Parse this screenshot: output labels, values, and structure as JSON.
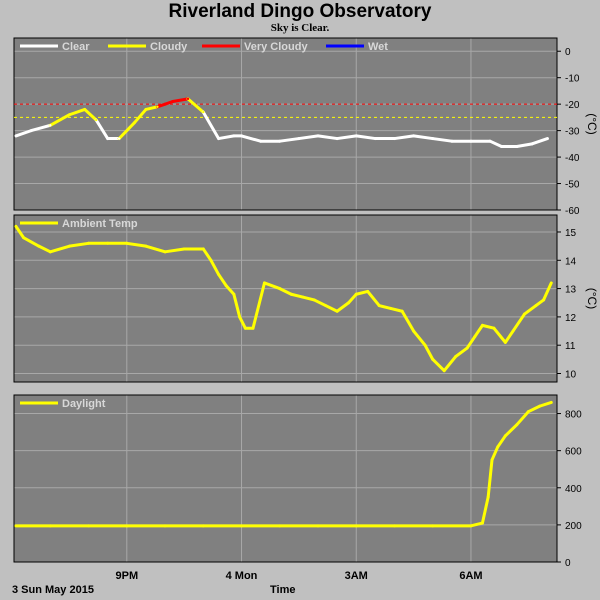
{
  "title": "Riverland Dingo Observatory",
  "subtitle": "Sky is Clear.",
  "footer": {
    "date": "3 Sun May 2015",
    "x_axis_label": "Time"
  },
  "colors": {
    "panel": "#808080",
    "grid": "#a8a8a8",
    "clear": "#ffffff",
    "cloudy": "#ffff00",
    "very_cloudy": "#ff0000",
    "wet": "#0000ff",
    "threshold_cloudy": "#ffff00",
    "threshold_very_cloudy": "#ff0000"
  },
  "x_ticks": [
    {
      "label": "9PM",
      "t": 3
    },
    {
      "label": "4 Mon",
      "t": 6
    },
    {
      "label": "3AM",
      "t": 9
    },
    {
      "label": "6AM",
      "t": 12
    }
  ],
  "chart_data": [
    {
      "type": "line",
      "name": "sky",
      "legend": [
        "Clear",
        "Cloudy",
        "Very Cloudy",
        "Wet"
      ],
      "ylabel": "(°C)",
      "ylim": [
        -60,
        5
      ],
      "yticks": [
        0,
        -10,
        -20,
        -30,
        -40,
        -50,
        -60
      ],
      "thresholds": [
        {
          "value": -20,
          "color": "red"
        },
        {
          "value": -25,
          "color": "yellow"
        }
      ],
      "xlim": [
        0.05,
        14.25
      ],
      "x": [
        0.1,
        0.5,
        1.0,
        1.5,
        1.9,
        2.2,
        2.5,
        2.8,
        3.2,
        3.5,
        3.8,
        4.0,
        4.2,
        4.6,
        5.0,
        5.4,
        5.8,
        6.0,
        6.5,
        7.0,
        7.5,
        8.0,
        8.5,
        9.0,
        9.5,
        10.0,
        10.5,
        11.0,
        11.5,
        12.0,
        12.5,
        12.8,
        13.2,
        13.6,
        14.0
      ],
      "y": [
        -32,
        -30,
        -28,
        -24,
        -22,
        -26,
        -33,
        -33,
        -27,
        -22,
        -21,
        -20,
        -19,
        -18,
        -23,
        -33,
        -32,
        -32,
        -34,
        -34,
        -33,
        -32,
        -33,
        -32,
        -33,
        -33,
        -32,
        -33,
        -34,
        -34,
        -34,
        -36,
        -36,
        -35,
        -33
      ],
      "state": [
        "clear",
        "clear",
        "clear",
        "cloudy",
        "cloudy",
        "cloudy",
        "clear",
        "clear",
        "cloudy",
        "cloudy",
        "cloudy",
        "very_cloudy",
        "very_cloudy",
        "very_cloudy",
        "cloudy",
        "clear",
        "clear",
        "clear",
        "clear",
        "clear",
        "clear",
        "clear",
        "clear",
        "clear",
        "clear",
        "clear",
        "clear",
        "clear",
        "clear",
        "clear",
        "clear",
        "clear",
        "clear",
        "clear",
        "clear"
      ]
    },
    {
      "type": "line",
      "name": "ambient",
      "legend": [
        "Ambient Temp"
      ],
      "ylabel": "(°C)",
      "ylim": [
        9.7,
        15.6
      ],
      "yticks": [
        15,
        14,
        13,
        12,
        11,
        10
      ],
      "xlim": [
        0.05,
        14.25
      ],
      "x": [
        0.1,
        0.3,
        0.7,
        1.0,
        1.5,
        2.0,
        2.5,
        3.0,
        3.5,
        4.0,
        4.5,
        5.0,
        5.2,
        5.4,
        5.6,
        5.8,
        5.95,
        6.1,
        6.3,
        6.6,
        7.0,
        7.3,
        7.6,
        7.9,
        8.2,
        8.5,
        8.8,
        9.0,
        9.3,
        9.6,
        9.9,
        10.2,
        10.5,
        10.8,
        11.0,
        11.3,
        11.6,
        11.9,
        12.1,
        12.3,
        12.6,
        12.9,
        13.1,
        13.4,
        13.7,
        13.9,
        14.1
      ],
      "y": [
        15.2,
        14.8,
        14.5,
        14.3,
        14.5,
        14.6,
        14.6,
        14.6,
        14.5,
        14.3,
        14.4,
        14.4,
        14.0,
        13.5,
        13.1,
        12.8,
        12.0,
        11.6,
        11.6,
        13.2,
        13.0,
        12.8,
        12.7,
        12.6,
        12.4,
        12.2,
        12.5,
        12.8,
        12.9,
        12.4,
        12.3,
        12.2,
        11.5,
        11.0,
        10.5,
        10.1,
        10.6,
        10.9,
        11.3,
        11.7,
        11.6,
        11.1,
        11.5,
        12.1,
        12.4,
        12.6,
        13.2
      ]
    },
    {
      "type": "line",
      "name": "daylight",
      "legend": [
        "Daylight"
      ],
      "ylabel": "",
      "ylim": [
        0,
        900
      ],
      "yticks": [
        800,
        600,
        400,
        200,
        0
      ],
      "xlim": [
        0.05,
        14.25
      ],
      "x": [
        0.1,
        1.0,
        2.0,
        3.0,
        4.0,
        5.0,
        6.0,
        7.0,
        8.0,
        9.0,
        10.0,
        11.0,
        12.0,
        12.3,
        12.45,
        12.55,
        12.7,
        12.9,
        13.2,
        13.5,
        13.8,
        14.1
      ],
      "y": [
        195,
        195,
        195,
        195,
        195,
        195,
        195,
        195,
        195,
        195,
        195,
        195,
        195,
        210,
        350,
        550,
        620,
        680,
        740,
        810,
        840,
        860
      ]
    }
  ]
}
